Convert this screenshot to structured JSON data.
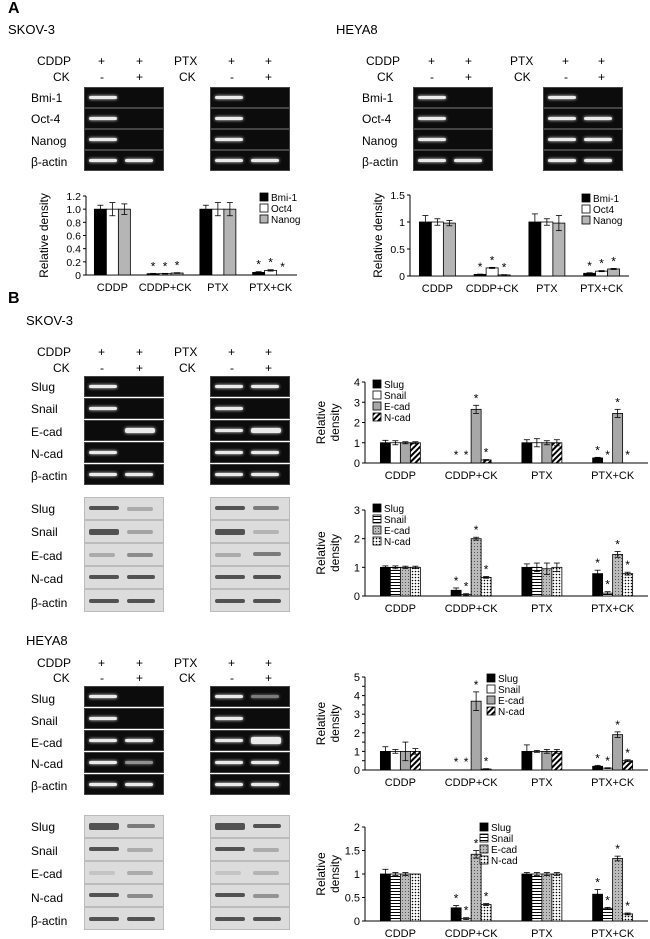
{
  "panels": {
    "a": "A",
    "b": "B"
  },
  "cell_lines": {
    "skov3": "SKOV-3",
    "heya8": "HEYA8"
  },
  "treatments": {
    "cddp": "CDDP",
    "ck": "CK",
    "ptx": "PTX",
    "plus": "+",
    "minus": "-"
  },
  "markers": {
    "bmi1": "Bmi-1",
    "oct4": "Oct-4",
    "nanog": "Nanog",
    "actin": "β-actin",
    "slug": "Slug",
    "snail": "Snail",
    "ecad": "E-cad",
    "ncad": "N-cad"
  },
  "star": "*",
  "chart_data": [
    {
      "id": "a1",
      "type": "bar",
      "ylabel": "Relative density",
      "ylim": [
        0,
        1.2
      ],
      "yticks": [
        0,
        0.2,
        0.4,
        0.6,
        0.8,
        1.0,
        1.2
      ],
      "categories": [
        "CDDP",
        "CDDP+CK",
        "PTX",
        "PTX+CK"
      ],
      "legend_position": "top-right",
      "series": [
        {
          "name": "Bmi-1",
          "fill": "#000000",
          "values": [
            1.0,
            0.02,
            1.0,
            0.04
          ],
          "err": [
            0.06,
            0.005,
            0.06,
            0.01
          ],
          "sig": [
            false,
            true,
            false,
            true
          ]
        },
        {
          "name": "Oct4",
          "fill": "#ffffff",
          "values": [
            1.0,
            0.02,
            1.0,
            0.07
          ],
          "err": [
            0.1,
            0.005,
            0.1,
            0.01
          ],
          "sig": [
            false,
            true,
            false,
            true
          ]
        },
        {
          "name": "Nanog",
          "fill": "#b5b5b5",
          "values": [
            1.0,
            0.03,
            1.0,
            0.0
          ],
          "err": [
            0.08,
            0.005,
            0.1,
            0.0
          ],
          "sig": [
            false,
            true,
            false,
            true
          ]
        }
      ]
    },
    {
      "id": "a2",
      "type": "bar",
      "ylabel": "Relative density",
      "ylim": [
        0,
        1.5
      ],
      "yticks": [
        0,
        0.5,
        1,
        1.5
      ],
      "categories": [
        "CDDP",
        "CDDP+CK",
        "PTX",
        "PTX+CK"
      ],
      "legend_position": "top-right",
      "series": [
        {
          "name": "Bmi-1",
          "fill": "#000000",
          "values": [
            1.0,
            0.03,
            1.0,
            0.05
          ],
          "err": [
            0.12,
            0.005,
            0.15,
            0.01
          ],
          "sig": [
            false,
            true,
            false,
            true
          ]
        },
        {
          "name": "Oct4",
          "fill": "#ffffff",
          "values": [
            1.0,
            0.15,
            1.0,
            0.09
          ],
          "err": [
            0.06,
            0.01,
            0.06,
            0.01
          ],
          "sig": [
            false,
            true,
            false,
            true
          ]
        },
        {
          "name": "Nanog",
          "fill": "#b5b5b5",
          "values": [
            0.98,
            0.02,
            0.98,
            0.13
          ],
          "err": [
            0.05,
            0.005,
            0.14,
            0.01
          ],
          "sig": [
            false,
            true,
            false,
            true
          ]
        }
      ]
    },
    {
      "id": "b1",
      "type": "bar",
      "ylabel": "Relative density",
      "ylim": [
        0,
        4
      ],
      "yticks": [
        0,
        1,
        2,
        3,
        4
      ],
      "categories": [
        "CDDP",
        "CDDP+CK",
        "PTX",
        "PTX+CK"
      ],
      "legend_position": "top-left",
      "series": [
        {
          "name": "Slug",
          "fill": "#000000",
          "values": [
            1.0,
            0.0,
            1.0,
            0.25
          ],
          "err": [
            0.12,
            0,
            0.15,
            0.03
          ],
          "sig": [
            false,
            true,
            false,
            true
          ]
        },
        {
          "name": "Snail",
          "fill": "#ffffff",
          "values": [
            1.0,
            0.0,
            1.0,
            0.0
          ],
          "err": [
            0.1,
            0,
            0.2,
            0
          ],
          "sig": [
            false,
            true,
            false,
            true
          ]
        },
        {
          "name": "E-cad",
          "fill": "#a8a8a8",
          "values": [
            1.0,
            2.65,
            1.0,
            2.45
          ],
          "err": [
            0.05,
            0.2,
            0.1,
            0.2
          ],
          "sig": [
            false,
            true,
            false,
            true
          ]
        },
        {
          "name": "N-cad",
          "fill": "url(#hatch)",
          "values": [
            1.0,
            0.15,
            1.0,
            0.0
          ],
          "err": [
            0.05,
            0.02,
            0.15,
            0
          ],
          "sig": [
            false,
            true,
            false,
            true
          ]
        }
      ]
    },
    {
      "id": "b2",
      "type": "bar",
      "ylabel": "Relative density",
      "ylim": [
        0,
        3
      ],
      "yticks": [
        0,
        1,
        2,
        3
      ],
      "categories": [
        "CDDP",
        "CDDP+CK",
        "PTX",
        "PTX+CK"
      ],
      "legend_position": "top-left",
      "series": [
        {
          "name": "Slug",
          "fill": "#000000",
          "values": [
            1.0,
            0.2,
            1.0,
            0.78
          ],
          "err": [
            0.05,
            0.08,
            0.12,
            0.12
          ],
          "sig": [
            false,
            true,
            false,
            true
          ]
        },
        {
          "name": "Snail",
          "fill": "url(#lines)",
          "values": [
            1.0,
            0.05,
            1.0,
            0.1
          ],
          "err": [
            0.05,
            0.03,
            0.15,
            0.05
          ],
          "sig": [
            false,
            true,
            false,
            true
          ]
        },
        {
          "name": "E-cad",
          "fill": "url(#check)",
          "values": [
            1.0,
            2.0,
            0.95,
            1.45
          ],
          "err": [
            0.04,
            0.05,
            0.2,
            0.1
          ],
          "sig": [
            false,
            true,
            false,
            true
          ]
        },
        {
          "name": "N-cad",
          "fill": "url(#dots)",
          "values": [
            1.0,
            0.65,
            1.0,
            0.78
          ],
          "err": [
            0.04,
            0.03,
            0.15,
            0.05
          ],
          "sig": [
            false,
            true,
            false,
            true
          ]
        }
      ]
    },
    {
      "id": "b3",
      "type": "bar",
      "ylabel": "Relative density",
      "ylim": [
        0,
        5
      ],
      "yticks": [
        0,
        0.5,
        1,
        1.5,
        2,
        2.5,
        3,
        3.5,
        4,
        4.5,
        5
      ],
      "categories": [
        "CDDP",
        "CDDP+CK",
        "PTX",
        "PTX+CK"
      ],
      "legend_position": "top-right",
      "series": [
        {
          "name": "Slug",
          "fill": "#000000",
          "values": [
            1.0,
            0.0,
            1.0,
            0.2
          ],
          "err": [
            0.25,
            0,
            0.35,
            0.05
          ],
          "sig": [
            false,
            true,
            false,
            true
          ]
        },
        {
          "name": "Snail",
          "fill": "#ffffff",
          "values": [
            1.0,
            0.0,
            1.0,
            0.1
          ],
          "err": [
            0.1,
            0,
            0.05,
            0.02
          ],
          "sig": [
            false,
            true,
            false,
            true
          ]
        },
        {
          "name": "E-cad",
          "fill": "#a8a8a8",
          "values": [
            1.0,
            3.7,
            1.0,
            1.9
          ],
          "err": [
            0.5,
            0.5,
            0.1,
            0.15
          ],
          "sig": [
            false,
            true,
            false,
            true
          ]
        },
        {
          "name": "N-cad",
          "fill": "url(#hatch)",
          "values": [
            1.0,
            0.05,
            1.0,
            0.5
          ],
          "err": [
            0.15,
            0.02,
            0.1,
            0.05
          ],
          "sig": [
            false,
            true,
            false,
            true
          ]
        }
      ]
    },
    {
      "id": "b4",
      "type": "bar",
      "ylabel": "Relative density",
      "ylim": [
        0,
        2
      ],
      "yticks": [
        0,
        0.5,
        1,
        1.5,
        2
      ],
      "categories": [
        "CDDP",
        "CDDP+CK",
        "PTX",
        "PTX+CK"
      ],
      "legend_position": "top-right",
      "series": [
        {
          "name": "Slug",
          "fill": "#000000",
          "values": [
            1.0,
            0.28,
            1.0,
            0.57
          ],
          "err": [
            0.1,
            0.05,
            0.03,
            0.1
          ],
          "sig": [
            false,
            true,
            false,
            true
          ]
        },
        {
          "name": "Snail",
          "fill": "url(#lines)",
          "values": [
            1.0,
            0.05,
            1.0,
            0.27
          ],
          "err": [
            0.03,
            0.02,
            0.03,
            0.02
          ],
          "sig": [
            false,
            true,
            false,
            true
          ]
        },
        {
          "name": "E-cad",
          "fill": "url(#check)",
          "values": [
            1.0,
            1.42,
            1.0,
            1.33
          ],
          "err": [
            0.03,
            0.08,
            0.03,
            0.05
          ],
          "sig": [
            false,
            true,
            false,
            true
          ]
        },
        {
          "name": "N-cad",
          "fill": "url(#dots)",
          "values": [
            1.0,
            0.35,
            1.0,
            0.15
          ],
          "err": [
            0.0,
            0.02,
            0.03,
            0.02
          ],
          "sig": [
            false,
            true,
            false,
            true
          ]
        }
      ]
    }
  ]
}
